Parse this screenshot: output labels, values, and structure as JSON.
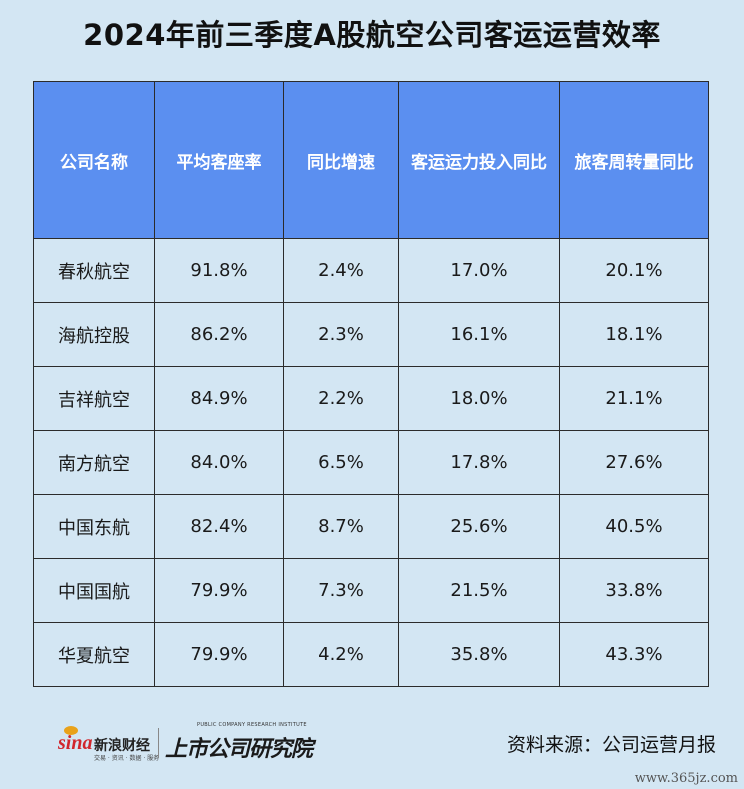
{
  "title": "2024年前三季度A股航空公司客运运营效率",
  "chart_data": {
    "type": "table",
    "title": "2024年前三季度A股航空公司客运运营效率",
    "columns": [
      "公司名称",
      "平均客座率",
      "同比增速",
      "客运运力投入同比",
      "旅客周转量同比"
    ],
    "rows": [
      [
        "春秋航空",
        "91.8%",
        "2.4%",
        "17.0%",
        "20.1%"
      ],
      [
        "海航控股",
        "86.2%",
        "2.3%",
        "16.1%",
        "18.1%"
      ],
      [
        "吉祥航空",
        "84.9%",
        "2.2%",
        "18.0%",
        "21.1%"
      ],
      [
        "南方航空",
        "84.0%",
        "6.5%",
        "17.8%",
        "27.6%"
      ],
      [
        "中国东航",
        "82.4%",
        "8.7%",
        "25.6%",
        "40.5%"
      ],
      [
        "中国国航",
        "79.9%",
        "7.3%",
        "21.5%",
        "33.8%"
      ],
      [
        "华夏航空",
        "79.9%",
        "4.2%",
        "35.8%",
        "43.3%"
      ]
    ]
  },
  "colors": {
    "background": "#d3e6f3",
    "header_fill": "#5b8ff0",
    "header_text": "#ffffff",
    "border": "#2b2b2b"
  },
  "footer": {
    "sina_word": "sina",
    "sina_name": "新浪财经",
    "sina_sub": "交易 · 资讯 · 数据 · 服务",
    "institute_name": "上市公司研究院",
    "institute_en": "PUBLIC COMPANY RESEARCH INSTITUTE",
    "source": "资料来源：公司运营月报",
    "watermark": "www.365jz.com"
  }
}
